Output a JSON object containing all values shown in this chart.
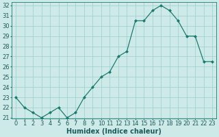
{
  "x": [
    0,
    1,
    2,
    3,
    4,
    5,
    6,
    7,
    8,
    9,
    10,
    11,
    12,
    13,
    14,
    15,
    16,
    17,
    18,
    19,
    20,
    21,
    22,
    23
  ],
  "y": [
    23,
    22,
    21.5,
    21,
    21.5,
    22,
    21,
    21.5,
    23,
    24,
    25,
    25.5,
    27,
    27.5,
    30.5,
    30.5,
    31.5,
    32,
    31.5,
    30.5,
    29,
    29,
    26.5,
    26.5
  ],
  "line_color": "#1a7a6e",
  "marker_color": "#1a7a6e",
  "bg_color": "#ceeae8",
  "grid_color": "#9acece",
  "xlabel": "Humidex (Indice chaleur)",
  "ylim": [
    21,
    32
  ],
  "xlim": [
    -0.5,
    23.5
  ],
  "yticks": [
    21,
    22,
    23,
    24,
    25,
    26,
    27,
    28,
    29,
    30,
    31,
    32
  ],
  "xticks": [
    0,
    1,
    2,
    3,
    4,
    5,
    6,
    7,
    8,
    9,
    10,
    11,
    12,
    13,
    14,
    15,
    16,
    17,
    18,
    19,
    20,
    21,
    22,
    23
  ],
  "tick_fontsize": 6,
  "xlabel_fontsize": 7,
  "line_width": 0.9,
  "marker_size": 2.0
}
